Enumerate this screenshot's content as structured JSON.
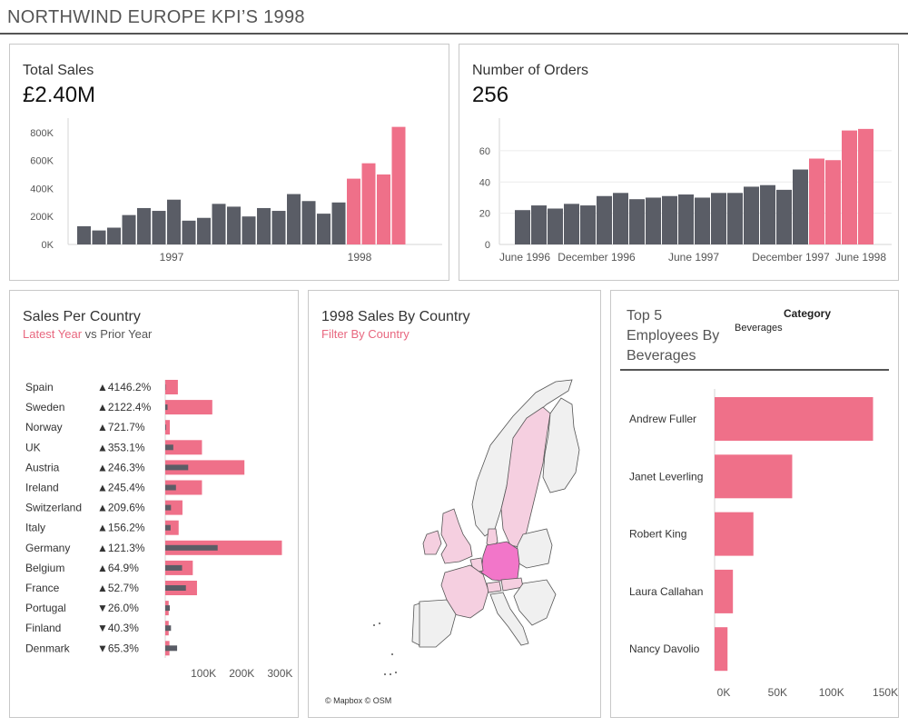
{
  "header": {
    "title": "NORTHWIND EUROPE KPI’S 1998"
  },
  "colors": {
    "dark": "#5a5d66",
    "pink": "#ef7089",
    "map_hi": "#f276c9",
    "map_mid": "#f5c4da",
    "map_low": "#f0f0f0"
  },
  "total_sales": {
    "title": "Total Sales",
    "value": "£2.40M",
    "chart_data": {
      "type": "bar",
      "y_ticks": [
        "0K",
        "200K",
        "400K",
        "600K",
        "800K"
      ],
      "ylim": [
        0,
        870000
      ],
      "x_ticks": [
        "1997",
        "1998"
      ],
      "series": [
        {
          "values": [
            130000,
            100000,
            120000,
            210000,
            260000,
            240000,
            320000,
            170000,
            190000,
            290000,
            270000,
            200000,
            260000,
            240000,
            360000,
            310000,
            220000,
            300000
          ]
        },
        {
          "values": [
            470000,
            580000,
            500000,
            840000
          ]
        }
      ]
    }
  },
  "orders": {
    "title": "Number of Orders",
    "value": "256",
    "chart_data": {
      "type": "bar",
      "y_ticks": [
        "0",
        "20",
        "40",
        "60"
      ],
      "ylim": [
        0,
        78
      ],
      "x_ticks": [
        "June 1996",
        "December 1996",
        "June 1997",
        "December 1997",
        "June 1998"
      ],
      "series": [
        {
          "values": [
            22,
            25,
            23,
            26,
            25,
            31,
            33,
            29,
            30,
            31,
            32,
            30,
            33,
            33,
            37,
            38,
            35,
            48
          ]
        },
        {
          "values": [
            55,
            54,
            73,
            74
          ]
        }
      ]
    }
  },
  "sales_country": {
    "title": "Sales Per Country",
    "subtitle_accent": "Latest Year",
    "subtitle_rest": " vs Prior Year",
    "chart_data": {
      "type": "bar",
      "x_ticks": [
        "100K",
        "200K",
        "300K"
      ],
      "xlim": [
        0,
        330000
      ],
      "rows": [
        {
          "country": "Spain",
          "change": "▲4146.2%",
          "latest": 33000,
          "prior": 1000
        },
        {
          "country": "Sweden",
          "change": "▲2122.4%",
          "latest": 123000,
          "prior": 6000
        },
        {
          "country": "Norway",
          "change": "▲721.7%",
          "latest": 12000,
          "prior": 2000
        },
        {
          "country": "UK",
          "change": "▲353.1%",
          "latest": 96000,
          "prior": 21000
        },
        {
          "country": "Austria",
          "change": "▲246.3%",
          "latest": 207000,
          "prior": 60000
        },
        {
          "country": "Ireland",
          "change": "▲245.4%",
          "latest": 96000,
          "prior": 28000
        },
        {
          "country": "Switzerland",
          "change": "▲209.6%",
          "latest": 45000,
          "prior": 15000
        },
        {
          "country": "Italy",
          "change": "▲156.2%",
          "latest": 35000,
          "prior": 14000
        },
        {
          "country": "Germany",
          "change": "▲121.3%",
          "latest": 305000,
          "prior": 137000
        },
        {
          "country": "Belgium",
          "change": "▲64.9%",
          "latest": 72000,
          "prior": 44000
        },
        {
          "country": "France",
          "change": "▲52.7%",
          "latest": 83000,
          "prior": 54000
        },
        {
          "country": "Portugal",
          "change": "▼26.0%",
          "latest": 9000,
          "prior": 12000
        },
        {
          "country": "Finland",
          "change": "▼40.3%",
          "latest": 9000,
          "prior": 15000
        },
        {
          "country": "Denmark",
          "change": "▼65.3%",
          "latest": 11000,
          "prior": 31000
        }
      ]
    }
  },
  "map": {
    "title": "1998 Sales By Country",
    "subtitle": "Filter By Country",
    "credit": "© Mapbox © OSM"
  },
  "employees": {
    "title_lines": [
      "Top 5",
      "Employees By",
      "Beverages"
    ],
    "legend_title": "Category",
    "legend_value": "Beverages",
    "chart_data": {
      "type": "bar",
      "x_ticks": [
        "0K",
        "50K",
        "100K",
        "150K"
      ],
      "xlim": [
        0,
        155000
      ],
      "rows": [
        {
          "name": "Andrew Fuller",
          "value": 147000
        },
        {
          "name": "Janet Leverling",
          "value": 72000
        },
        {
          "name": "Robert King",
          "value": 36000
        },
        {
          "name": "Laura Callahan",
          "value": 17000
        },
        {
          "name": "Nancy Davolio",
          "value": 12000
        }
      ]
    }
  }
}
